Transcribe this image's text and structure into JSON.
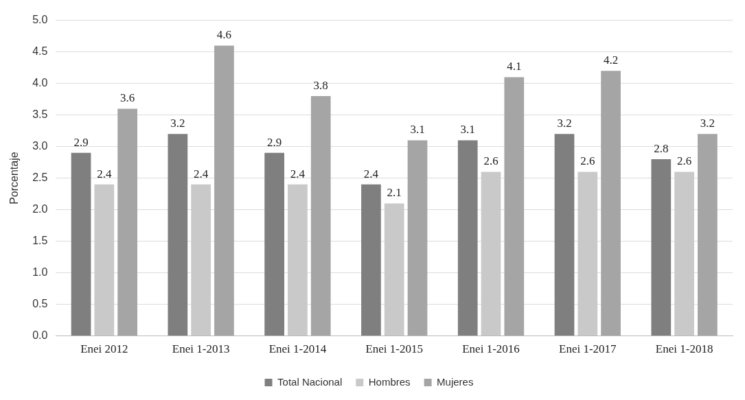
{
  "chart_data": {
    "type": "bar",
    "ylabel": "Porcentaje",
    "categories": [
      "Enei 2012",
      "Enei 1-2013",
      "Enei 1-2014",
      "Enei 1-2015",
      "Enei 1-2016",
      "Enei 1-2017",
      "Enei 1-2018"
    ],
    "series": [
      {
        "name": "Total Nacional",
        "color": "#7f7f7f",
        "values": [
          2.9,
          3.2,
          2.9,
          2.4,
          3.1,
          3.2,
          2.8
        ]
      },
      {
        "name": "Hombres",
        "color": "#c9c9c9",
        "values": [
          2.4,
          2.4,
          2.4,
          2.1,
          2.6,
          2.6,
          2.6
        ]
      },
      {
        "name": "Mujeres",
        "color": "#a5a5a5",
        "values": [
          3.6,
          4.6,
          3.8,
          3.1,
          4.1,
          4.2,
          3.2
        ]
      }
    ],
    "ylim": [
      0,
      5
    ],
    "yticks": [
      {
        "value": 0,
        "label": "0.0"
      },
      {
        "value": 0.5,
        "label": "0.5"
      },
      {
        "value": 1,
        "label": "1.0"
      },
      {
        "value": 1.5,
        "label": "1.5"
      },
      {
        "value": 2,
        "label": "2.0"
      },
      {
        "value": 2.5,
        "label": "2.5"
      },
      {
        "value": 3,
        "label": "3.0"
      },
      {
        "value": 3.5,
        "label": "3.5"
      },
      {
        "value": 4,
        "label": "4.0"
      },
      {
        "value": 4.5,
        "label": "4.5"
      },
      {
        "value": 5,
        "label": "5.0"
      }
    ],
    "grid": "y",
    "legend": "bottom",
    "data_labels": true
  }
}
